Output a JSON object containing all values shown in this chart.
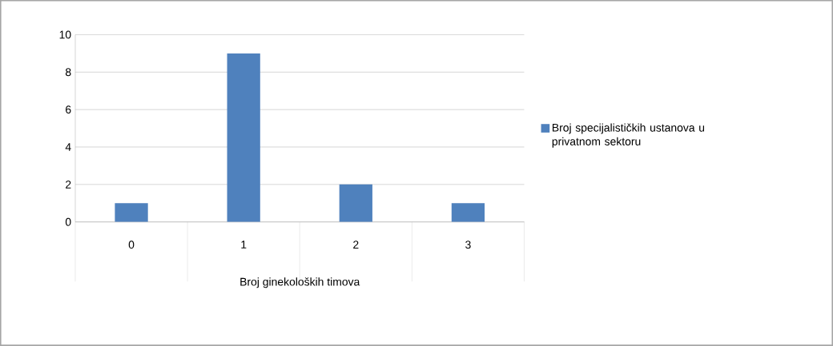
{
  "chart_data": {
    "type": "bar",
    "categories": [
      "0",
      "1",
      "2",
      "3"
    ],
    "series": [
      {
        "name": "Broj specijalističkih ustanova u privatnom sektoru",
        "color": "#4f81bd",
        "values": [
          1,
          9,
          2,
          1
        ]
      }
    ],
    "xlabel": "Broj ginekoloških timova",
    "ylim": [
      0,
      10
    ],
    "yticks": [
      0,
      2,
      4,
      6,
      8,
      10
    ],
    "grid": "y",
    "legend": "right"
  }
}
